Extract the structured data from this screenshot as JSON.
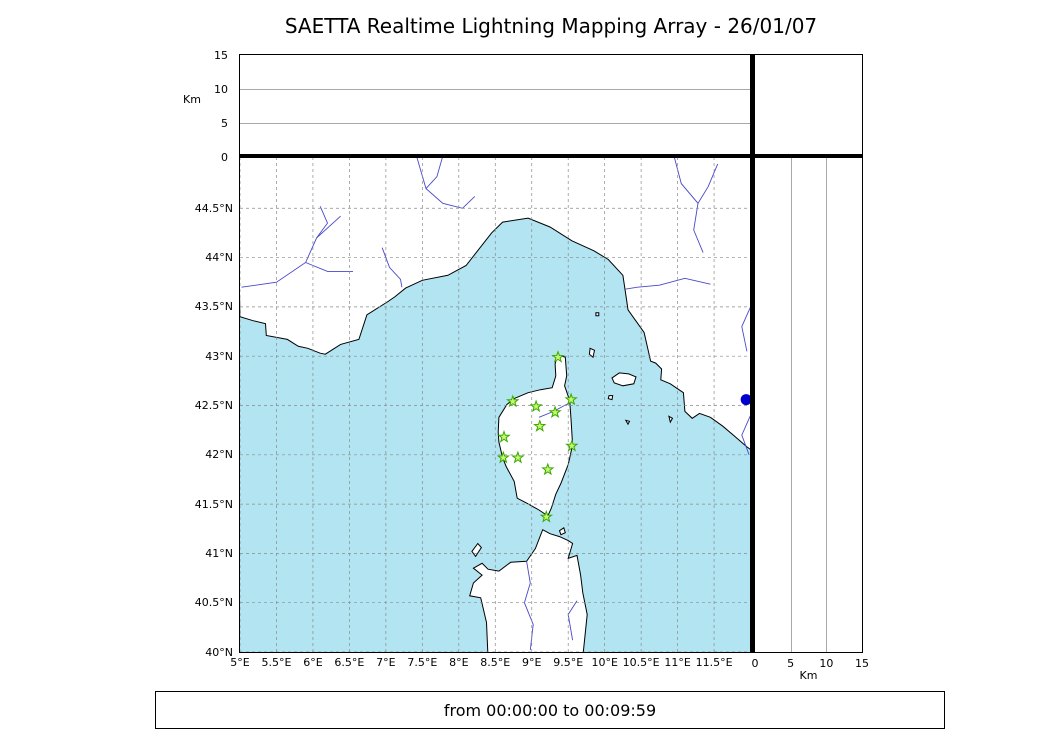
{
  "title": "SAETTA Realtime Lightning Mapping Array - 26/01/07",
  "status_bar": {
    "text": "from 00:00:00 to 00:09:59"
  },
  "colors": {
    "sea": "#b2e4f2",
    "land": "#ffffff",
    "coast": "#000000",
    "river": "#4848cc",
    "grid": "#8a8a8a",
    "station_fill": "#c8f970",
    "station_stroke": "#3aa800",
    "sea_marker": "#0000cc"
  },
  "map": {
    "lon_range": [
      5.0,
      12.02
    ],
    "lat_range": [
      40.0,
      45.02
    ],
    "lat_tick_values": [
      44.5,
      44,
      43.5,
      43,
      42.5,
      42,
      41.5,
      41,
      40.5,
      40
    ],
    "lat_tick_labels": [
      "44.5°N",
      "44°N",
      "43.5°N",
      "43°N",
      "42.5°N",
      "42°N",
      "41.5°N",
      "41°N",
      "40.5°N",
      "40°N"
    ],
    "lon_tick_values": [
      5,
      5.5,
      6,
      6.5,
      7,
      7.5,
      8,
      8.5,
      9,
      9.5,
      10,
      10.5,
      11,
      11.5
    ],
    "lon_tick_labels": [
      "5°E",
      "5.5°E",
      "6°E",
      "6.5°E",
      "7°E",
      "7.5°E",
      "8°E",
      "8.5°E",
      "9°E",
      "9.5°E",
      "10°E",
      "10.5°E",
      "11°E",
      "11.5°E"
    ]
  },
  "altitude_axis": {
    "label": "Km",
    "max": 15,
    "tick_values": [
      0,
      5,
      10,
      15
    ],
    "tick_labels": [
      "0",
      "5",
      "10",
      "15"
    ]
  },
  "stations": [
    {
      "lon": 9.36,
      "lat": 42.99
    },
    {
      "lon": 8.74,
      "lat": 42.54
    },
    {
      "lon": 9.06,
      "lat": 42.49
    },
    {
      "lon": 9.32,
      "lat": 42.43
    },
    {
      "lon": 9.54,
      "lat": 42.56
    },
    {
      "lon": 9.11,
      "lat": 42.29
    },
    {
      "lon": 8.62,
      "lat": 42.18
    },
    {
      "lon": 9.55,
      "lat": 42.09
    },
    {
      "lon": 8.61,
      "lat": 41.97
    },
    {
      "lon": 8.81,
      "lat": 41.97
    },
    {
      "lon": 9.22,
      "lat": 41.85
    },
    {
      "lon": 9.2,
      "lat": 41.37
    }
  ],
  "sea_marker": {
    "lon": 11.94,
    "lat": 42.56,
    "radius": 5.5
  },
  "map_features": {
    "land": [
      {
        "name": "mainland-france-italy",
        "points": [
          [
            5.0,
            43.4
          ],
          [
            5.18,
            43.36
          ],
          [
            5.35,
            43.33
          ],
          [
            5.36,
            43.21
          ],
          [
            5.65,
            43.17
          ],
          [
            5.8,
            43.1
          ],
          [
            5.93,
            43.08
          ],
          [
            6.1,
            43.03
          ],
          [
            6.17,
            43.02
          ],
          [
            6.38,
            43.12
          ],
          [
            6.63,
            43.17
          ],
          [
            6.74,
            43.42
          ],
          [
            7.02,
            43.55
          ],
          [
            7.12,
            43.6
          ],
          [
            7.27,
            43.69
          ],
          [
            7.5,
            43.77
          ],
          [
            7.85,
            43.82
          ],
          [
            8.1,
            43.92
          ],
          [
            8.45,
            44.25
          ],
          [
            8.6,
            44.36
          ],
          [
            8.95,
            44.4
          ],
          [
            9.25,
            44.31
          ],
          [
            9.55,
            44.17
          ],
          [
            9.85,
            44.07
          ],
          [
            10.05,
            43.98
          ],
          [
            10.25,
            43.82
          ],
          [
            10.3,
            43.57
          ],
          [
            10.32,
            43.47
          ],
          [
            10.54,
            43.24
          ],
          [
            10.6,
            43.05
          ],
          [
            10.63,
            42.95
          ],
          [
            10.7,
            42.93
          ],
          [
            10.78,
            42.87
          ],
          [
            10.77,
            42.76
          ],
          [
            10.9,
            42.72
          ],
          [
            11.08,
            42.63
          ],
          [
            11.1,
            42.44
          ],
          [
            11.2,
            42.37
          ],
          [
            11.3,
            42.42
          ],
          [
            11.45,
            42.38
          ],
          [
            11.62,
            42.29
          ],
          [
            11.78,
            42.19
          ],
          [
            11.95,
            42.08
          ],
          [
            12.06,
            42.02
          ],
          [
            12.12,
            45.12
          ],
          [
            4.95,
            45.12
          ]
        ]
      },
      {
        "name": "corsica",
        "points": [
          [
            9.35,
            43.01
          ],
          [
            9.46,
            42.99
          ],
          [
            9.48,
            42.8
          ],
          [
            9.45,
            42.7
          ],
          [
            9.52,
            42.55
          ],
          [
            9.54,
            42.35
          ],
          [
            9.56,
            42.1
          ],
          [
            9.5,
            41.9
          ],
          [
            9.4,
            41.71
          ],
          [
            9.33,
            41.6
          ],
          [
            9.27,
            41.46
          ],
          [
            9.22,
            41.38
          ],
          [
            9.1,
            41.44
          ],
          [
            8.93,
            41.51
          ],
          [
            8.8,
            41.56
          ],
          [
            8.76,
            41.73
          ],
          [
            8.65,
            41.88
          ],
          [
            8.6,
            41.97
          ],
          [
            8.55,
            42.13
          ],
          [
            8.54,
            42.23
          ],
          [
            8.55,
            42.38
          ],
          [
            8.66,
            42.51
          ],
          [
            8.76,
            42.57
          ],
          [
            8.95,
            42.63
          ],
          [
            9.12,
            42.66
          ],
          [
            9.28,
            42.68
          ],
          [
            9.33,
            42.8
          ],
          [
            9.32,
            42.92
          ]
        ]
      },
      {
        "name": "sardinia",
        "points": [
          [
            8.4,
            39.95
          ],
          [
            8.38,
            40.3
          ],
          [
            8.3,
            40.55
          ],
          [
            8.15,
            40.57
          ],
          [
            8.2,
            40.7
          ],
          [
            8.32,
            40.78
          ],
          [
            8.2,
            40.85
          ],
          [
            8.32,
            40.9
          ],
          [
            8.4,
            40.84
          ],
          [
            8.55,
            40.82
          ],
          [
            8.71,
            40.91
          ],
          [
            8.93,
            40.92
          ],
          [
            9.05,
            41.05
          ],
          [
            9.15,
            41.24
          ],
          [
            9.25,
            41.2
          ],
          [
            9.38,
            41.17
          ],
          [
            9.5,
            41.13
          ],
          [
            9.56,
            41.1
          ],
          [
            9.5,
            40.95
          ],
          [
            9.62,
            40.98
          ],
          [
            9.67,
            40.78
          ],
          [
            9.7,
            40.6
          ],
          [
            9.76,
            40.38
          ],
          [
            9.7,
            39.95
          ]
        ]
      },
      {
        "name": "asinara",
        "points": [
          [
            8.18,
            41.02
          ],
          [
            8.26,
            41.1
          ],
          [
            8.31,
            41.06
          ],
          [
            8.23,
            40.97
          ]
        ]
      },
      {
        "name": "maddalena",
        "points": [
          [
            9.38,
            41.23
          ],
          [
            9.44,
            41.26
          ],
          [
            9.46,
            41.21
          ],
          [
            9.4,
            41.19
          ]
        ]
      },
      {
        "name": "elba",
        "points": [
          [
            10.1,
            42.78
          ],
          [
            10.2,
            42.83
          ],
          [
            10.33,
            42.82
          ],
          [
            10.43,
            42.79
          ],
          [
            10.4,
            42.72
          ],
          [
            10.25,
            42.7
          ],
          [
            10.13,
            42.73
          ]
        ]
      },
      {
        "name": "capraia",
        "points": [
          [
            9.8,
            43.08
          ],
          [
            9.86,
            43.06
          ],
          [
            9.84,
            42.99
          ],
          [
            9.79,
            43.02
          ]
        ]
      },
      {
        "name": "gorgona",
        "points": [
          [
            9.88,
            43.44
          ],
          [
            9.92,
            43.44
          ],
          [
            9.92,
            43.41
          ],
          [
            9.88,
            43.41
          ]
        ]
      },
      {
        "name": "pianosa",
        "points": [
          [
            10.06,
            42.6
          ],
          [
            10.11,
            42.6
          ],
          [
            10.1,
            42.56
          ],
          [
            10.05,
            42.57
          ]
        ]
      },
      {
        "name": "montecristo",
        "points": [
          [
            10.29,
            42.35
          ],
          [
            10.34,
            42.34
          ],
          [
            10.32,
            42.31
          ]
        ]
      },
      {
        "name": "giglio",
        "points": [
          [
            10.88,
            42.39
          ],
          [
            10.93,
            42.37
          ],
          [
            10.9,
            42.33
          ]
        ]
      }
    ],
    "rivers": [
      [
        [
          6.38,
          44.42
        ],
        [
          6.05,
          44.2
        ],
        [
          5.9,
          43.95
        ],
        [
          5.5,
          43.75
        ],
        [
          5.02,
          43.7
        ]
      ],
      [
        [
          6.55,
          43.86
        ],
        [
          6.2,
          43.86
        ],
        [
          5.9,
          43.95
        ]
      ],
      [
        [
          6.1,
          44.52
        ],
        [
          6.2,
          44.35
        ],
        [
          6.05,
          44.2
        ]
      ],
      [
        [
          6.95,
          44.1
        ],
        [
          7.05,
          43.9
        ],
        [
          7.2,
          43.78
        ],
        [
          7.22,
          43.7
        ]
      ],
      [
        [
          7.42,
          45.03
        ],
        [
          7.55,
          44.7
        ],
        [
          7.78,
          44.55
        ],
        [
          8.05,
          44.5
        ],
        [
          8.22,
          44.62
        ]
      ],
      [
        [
          7.78,
          45.03
        ],
        [
          7.7,
          44.82
        ],
        [
          7.55,
          44.7
        ]
      ],
      [
        [
          10.95,
          45.03
        ],
        [
          11.05,
          44.75
        ],
        [
          11.28,
          44.55
        ],
        [
          11.22,
          44.28
        ],
        [
          11.35,
          44.05
        ]
      ],
      [
        [
          11.55,
          44.95
        ],
        [
          11.42,
          44.72
        ],
        [
          11.28,
          44.55
        ]
      ],
      [
        [
          11.45,
          43.73
        ],
        [
          11.1,
          43.79
        ],
        [
          10.75,
          43.72
        ],
        [
          10.45,
          43.7
        ],
        [
          10.29,
          43.68
        ]
      ],
      [
        [
          12.03,
          43.55
        ],
        [
          11.88,
          43.3
        ],
        [
          11.95,
          43.05
        ]
      ],
      [
        [
          12.03,
          42.45
        ],
        [
          11.88,
          42.2
        ],
        [
          11.98,
          42.0
        ]
      ],
      [
        [
          9.1,
          42.38
        ],
        [
          9.3,
          42.44
        ],
        [
          9.5,
          42.52
        ]
      ],
      [
        [
          8.93,
          40.92
        ],
        [
          8.98,
          40.7
        ],
        [
          8.9,
          40.5
        ],
        [
          9.02,
          40.28
        ],
        [
          8.98,
          40.02
        ]
      ],
      [
        [
          9.62,
          40.52
        ],
        [
          9.5,
          40.38
        ],
        [
          9.56,
          40.12
        ]
      ]
    ]
  }
}
